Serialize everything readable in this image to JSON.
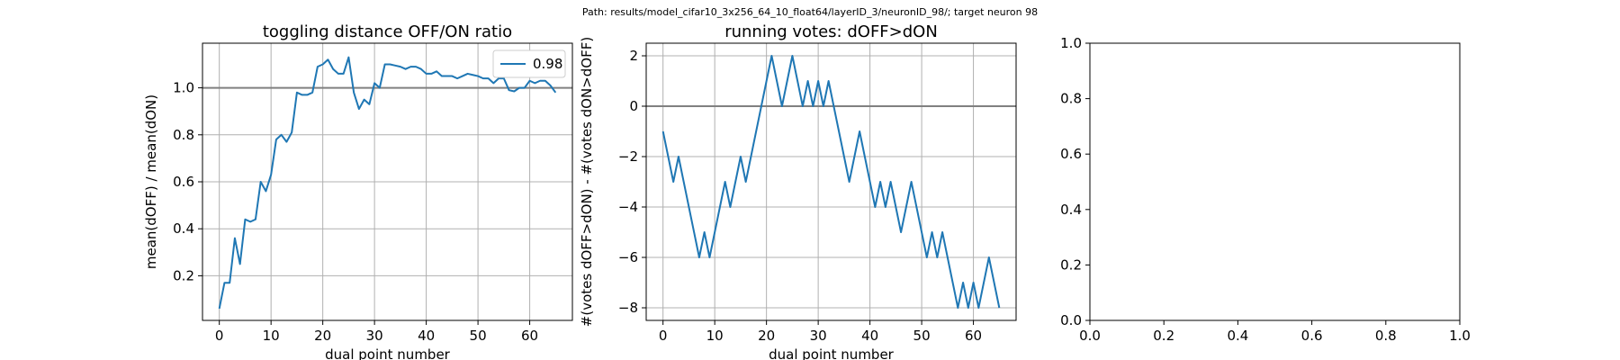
{
  "suptitle": "Path: results/model_cifar10_3x256_64_10_float64/layerID_3/neuronID_98/; target neuron 98",
  "colors": {
    "series": "#1f77b4",
    "reference": "#808080",
    "grid": "#b0b0b0"
  },
  "chart_data": [
    {
      "type": "line",
      "title": "toggling distance OFF/ON ratio",
      "xlabel": "dual point number",
      "ylabel": "mean(dOFF) / mean(dON)",
      "xlim": [
        -3.25,
        68.25
      ],
      "ylim": [
        0.01,
        1.19
      ],
      "xticks": [
        0,
        10,
        20,
        30,
        40,
        50,
        60
      ],
      "xtick_labels": [
        "0",
        "10",
        "20",
        "30",
        "40",
        "50",
        "60"
      ],
      "yticks": [
        0.2,
        0.4,
        0.6,
        0.8,
        1.0
      ],
      "ytick_labels": [
        "0.2",
        "0.4",
        "0.6",
        "0.8",
        "1.0"
      ],
      "grid": true,
      "reference_y": 1.0,
      "legend": {
        "placement": "top-right",
        "entries": [
          "0.98"
        ]
      },
      "series": [
        {
          "name": "0.98",
          "x": [
            0,
            1,
            2,
            3,
            4,
            5,
            6,
            7,
            8,
            9,
            10,
            11,
            12,
            13,
            14,
            15,
            16,
            17,
            18,
            19,
            20,
            21,
            22,
            23,
            24,
            25,
            26,
            27,
            28,
            29,
            30,
            31,
            32,
            33,
            34,
            35,
            36,
            37,
            38,
            39,
            40,
            41,
            42,
            43,
            44,
            45,
            46,
            47,
            48,
            49,
            50,
            51,
            52,
            53,
            54,
            55,
            56,
            57,
            58,
            59,
            60,
            61,
            62,
            63,
            64,
            65
          ],
          "y": [
            0.06,
            0.17,
            0.17,
            0.36,
            0.25,
            0.44,
            0.43,
            0.44,
            0.6,
            0.56,
            0.63,
            0.78,
            0.8,
            0.77,
            0.81,
            0.98,
            0.97,
            0.97,
            0.98,
            1.09,
            1.1,
            1.12,
            1.08,
            1.06,
            1.06,
            1.13,
            0.98,
            0.91,
            0.95,
            0.93,
            1.02,
            1.0,
            1.1,
            1.1,
            1.095,
            1.09,
            1.08,
            1.09,
            1.09,
            1.08,
            1.06,
            1.06,
            1.07,
            1.05,
            1.05,
            1.05,
            1.04,
            1.05,
            1.06,
            1.055,
            1.05,
            1.04,
            1.04,
            1.02,
            1.04,
            1.04,
            0.99,
            0.985,
            1.0,
            1.0,
            1.03,
            1.02,
            1.03,
            1.03,
            1.01,
            0.98
          ]
        }
      ]
    },
    {
      "type": "line",
      "title": "running votes: dOFF>dON",
      "xlabel": "dual point number",
      "ylabel": "#(votes dOFF>dON) - #(votes dON>dOFF)",
      "xlim": [
        -3.25,
        68.25
      ],
      "ylim": [
        -8.5,
        2.5
      ],
      "xticks": [
        0,
        10,
        20,
        30,
        40,
        50,
        60
      ],
      "xtick_labels": [
        "0",
        "10",
        "20",
        "30",
        "40",
        "50",
        "60"
      ],
      "yticks": [
        -8,
        -6,
        -4,
        -2,
        0,
        2
      ],
      "ytick_labels": [
        "−8",
        "−6",
        "−4",
        "−2",
        "0",
        "2"
      ],
      "grid": true,
      "reference_y": 0,
      "series": [
        {
          "x": [
            0,
            1,
            2,
            3,
            4,
            5,
            6,
            7,
            8,
            9,
            10,
            11,
            12,
            13,
            14,
            15,
            16,
            17,
            18,
            19,
            20,
            21,
            22,
            23,
            24,
            25,
            26,
            27,
            28,
            29,
            30,
            31,
            32,
            33,
            34,
            35,
            36,
            37,
            38,
            39,
            40,
            41,
            42,
            43,
            44,
            45,
            46,
            47,
            48,
            49,
            50,
            51,
            52,
            53,
            54,
            55,
            56,
            57,
            58,
            59,
            60,
            61,
            62,
            63,
            64,
            65
          ],
          "y": [
            -1,
            -2,
            -3,
            -2,
            -3,
            -4,
            -5,
            -6,
            -5,
            -6,
            -5,
            -4,
            -3,
            -4,
            -3,
            -2,
            -3,
            -2,
            -1,
            0,
            1,
            2,
            1,
            0,
            1,
            2,
            1,
            0,
            1,
            0,
            1,
            0,
            1,
            0,
            -1,
            -2,
            -3,
            -2,
            -1,
            -2,
            -3,
            -4,
            -3,
            -4,
            -3,
            -4,
            -5,
            -4,
            -3,
            -4,
            -5,
            -6,
            -5,
            -6,
            -5,
            -6,
            -7,
            -8,
            -7,
            -8,
            -7,
            -8,
            -7,
            -6,
            -7,
            -8
          ]
        }
      ]
    },
    {
      "type": "empty",
      "xlim": [
        0,
        1
      ],
      "ylim": [
        0,
        1
      ],
      "xticks": [
        0,
        0.2,
        0.4,
        0.6,
        0.8,
        1.0
      ],
      "xtick_labels": [
        "0.0",
        "0.2",
        "0.4",
        "0.6",
        "0.8",
        "1.0"
      ],
      "yticks": [
        0,
        0.2,
        0.4,
        0.6,
        0.8,
        1.0
      ],
      "ytick_labels": [
        "0.0",
        "0.2",
        "0.4",
        "0.6",
        "0.8",
        "1.0"
      ],
      "grid": false
    }
  ]
}
